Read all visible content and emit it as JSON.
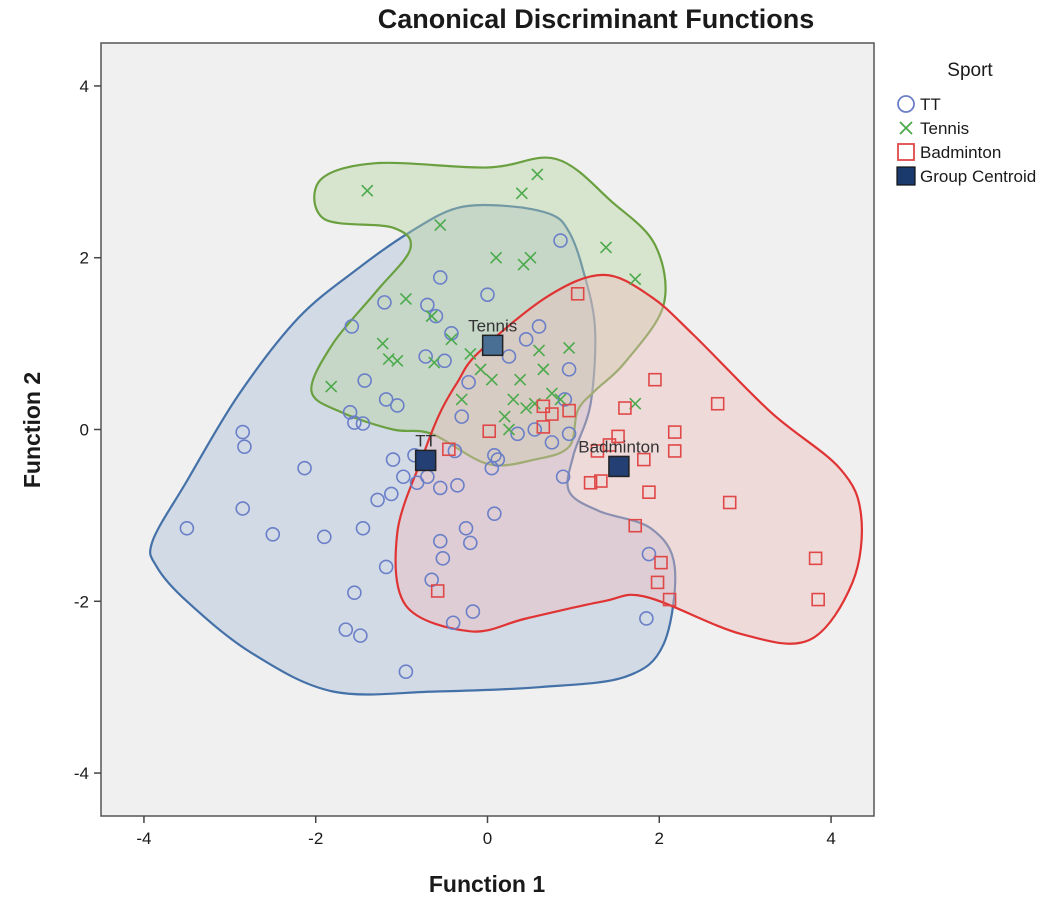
{
  "chart_data": {
    "type": "scatter",
    "title": "Canonical Discriminant Functions",
    "xlabel": "Function 1",
    "ylabel": "Function 2",
    "xlim": [
      -4.5,
      4.5
    ],
    "ylim": [
      -4.5,
      4.5
    ],
    "xticks": [
      "-4",
      "-2",
      "0",
      "2",
      "4"
    ],
    "yticks": [
      "-4",
      "-2",
      "0",
      "2",
      "4"
    ],
    "grid": false,
    "legend": {
      "title": "Sport",
      "placement": "right",
      "entries": [
        {
          "label": "TT",
          "marker": "circle",
          "color": "#6a7fc8"
        },
        {
          "label": "Tennis",
          "marker": "x",
          "color": "#4caa4c"
        },
        {
          "label": "Badminton",
          "marker": "square",
          "color": "#e04848"
        },
        {
          "label": "Group Centroid",
          "marker": "filled-square",
          "color": "#1a3a6e"
        }
      ]
    },
    "series": [
      {
        "name": "TT",
        "marker": "circle",
        "color": "#6a7fc8",
        "fill": "#a9bcd6",
        "outline": "#4471a8",
        "points": [
          [
            -3.5,
            -1.15
          ],
          [
            -2.85,
            -0.03
          ],
          [
            -2.83,
            -0.2
          ],
          [
            -2.85,
            -0.92
          ],
          [
            -2.5,
            -1.22
          ],
          [
            -2.13,
            -0.45
          ],
          [
            -1.9,
            -1.25
          ],
          [
            -1.65,
            -2.33
          ],
          [
            -1.58,
            1.2
          ],
          [
            -1.6,
            0.2
          ],
          [
            -1.55,
            0.08
          ],
          [
            -1.55,
            -1.9
          ],
          [
            -1.48,
            -2.4
          ],
          [
            -1.43,
            0.57
          ],
          [
            -1.45,
            0.07
          ],
          [
            -1.45,
            -1.15
          ],
          [
            -1.28,
            -0.82
          ],
          [
            -1.2,
            1.48
          ],
          [
            -1.18,
            0.35
          ],
          [
            -1.18,
            -1.6
          ],
          [
            -1.12,
            -0.75
          ],
          [
            -1.1,
            -0.35
          ],
          [
            -1.05,
            0.28
          ],
          [
            -0.98,
            -0.55
          ],
          [
            -0.95,
            -2.82
          ],
          [
            -0.85,
            -0.3
          ],
          [
            -0.82,
            -0.62
          ],
          [
            -0.7,
            1.45
          ],
          [
            -0.72,
            0.85
          ],
          [
            -0.7,
            -0.55
          ],
          [
            -0.65,
            -1.75
          ],
          [
            -0.6,
            1.32
          ],
          [
            -0.55,
            1.77
          ],
          [
            -0.55,
            -0.68
          ],
          [
            -0.55,
            -1.3
          ],
          [
            -0.52,
            -1.5
          ],
          [
            -0.5,
            0.8
          ],
          [
            -0.42,
            1.12
          ],
          [
            -0.4,
            -2.25
          ],
          [
            -0.38,
            -0.25
          ],
          [
            -0.35,
            -0.65
          ],
          [
            -0.3,
            0.15
          ],
          [
            -0.22,
            0.55
          ],
          [
            -0.25,
            -1.15
          ],
          [
            -0.2,
            -1.32
          ],
          [
            -0.17,
            -2.12
          ],
          [
            0.0,
            1.57
          ],
          [
            0.05,
            -0.45
          ],
          [
            0.08,
            -0.3
          ],
          [
            0.12,
            -0.35
          ],
          [
            0.08,
            -0.98
          ],
          [
            0.25,
            0.85
          ],
          [
            0.35,
            -0.05
          ],
          [
            0.45,
            1.05
          ],
          [
            0.55,
            0.0
          ],
          [
            0.6,
            1.2
          ],
          [
            0.75,
            -0.15
          ],
          [
            0.85,
            2.2
          ],
          [
            0.9,
            0.35
          ],
          [
            0.95,
            0.7
          ],
          [
            0.95,
            -0.05
          ],
          [
            0.88,
            -0.55
          ],
          [
            1.88,
            -1.45
          ],
          [
            1.85,
            -2.2
          ]
        ]
      },
      {
        "name": "Tennis",
        "marker": "x",
        "color": "#4caa4c",
        "fill": "#b6d3a0",
        "outline": "#6aa040",
        "points": [
          [
            -1.4,
            2.78
          ],
          [
            -1.82,
            0.5
          ],
          [
            -1.22,
            1.0
          ],
          [
            -1.15,
            0.82
          ],
          [
            -1.05,
            0.8
          ],
          [
            -0.95,
            1.52
          ],
          [
            -0.65,
            1.32
          ],
          [
            -0.62,
            0.78
          ],
          [
            -0.55,
            2.38
          ],
          [
            -0.42,
            1.05
          ],
          [
            -0.3,
            0.35
          ],
          [
            -0.2,
            0.88
          ],
          [
            -0.08,
            0.7
          ],
          [
            0.05,
            0.58
          ],
          [
            0.1,
            2.0
          ],
          [
            0.2,
            0.15
          ],
          [
            0.25,
            0.0
          ],
          [
            0.3,
            0.35
          ],
          [
            0.38,
            0.58
          ],
          [
            0.4,
            2.75
          ],
          [
            0.42,
            1.92
          ],
          [
            0.45,
            0.25
          ],
          [
            0.5,
            2.0
          ],
          [
            0.55,
            0.3
          ],
          [
            0.58,
            2.97
          ],
          [
            0.6,
            0.92
          ],
          [
            0.65,
            0.7
          ],
          [
            0.75,
            0.42
          ],
          [
            0.85,
            0.35
          ],
          [
            0.95,
            0.95
          ],
          [
            1.38,
            2.12
          ],
          [
            1.72,
            1.75
          ],
          [
            1.72,
            0.3
          ]
        ]
      },
      {
        "name": "Badminton",
        "marker": "square",
        "color": "#e04848",
        "fill": "#efbcbc",
        "outline": "#e03434",
        "points": [
          [
            -0.58,
            -1.88
          ],
          [
            -0.45,
            -0.23
          ],
          [
            0.02,
            -0.02
          ],
          [
            0.65,
            0.27
          ],
          [
            0.65,
            0.03
          ],
          [
            0.75,
            0.18
          ],
          [
            0.95,
            0.22
          ],
          [
            1.05,
            1.58
          ],
          [
            1.2,
            -0.62
          ],
          [
            1.28,
            -0.25
          ],
          [
            1.32,
            -0.6
          ],
          [
            1.42,
            -0.18
          ],
          [
            1.52,
            -0.08
          ],
          [
            1.6,
            0.25
          ],
          [
            1.72,
            -1.12
          ],
          [
            1.82,
            -0.35
          ],
          [
            1.88,
            -0.73
          ],
          [
            1.95,
            0.58
          ],
          [
            1.98,
            -1.78
          ],
          [
            2.02,
            -1.55
          ],
          [
            2.12,
            -1.98
          ],
          [
            2.18,
            -0.03
          ],
          [
            2.18,
            -0.25
          ],
          [
            2.68,
            0.3
          ],
          [
            2.82,
            -0.85
          ],
          [
            3.82,
            -1.5
          ],
          [
            3.85,
            -1.98
          ]
        ]
      }
    ],
    "centroids": [
      {
        "name": "TT",
        "label": "TT",
        "x": -0.72,
        "y": -0.36
      },
      {
        "name": "Tennis",
        "label": "Tennis",
        "x": 0.06,
        "y": 0.98
      },
      {
        "name": "Badminton",
        "label": "Badminton",
        "x": 1.53,
        "y": -0.43
      }
    ],
    "hulls": [
      {
        "name": "TT",
        "points": [
          [
            -3.9,
            -1.3
          ],
          [
            -3.5,
            -0.6
          ],
          [
            -2.9,
            0.4
          ],
          [
            -2.2,
            1.3
          ],
          [
            -1.5,
            1.88
          ],
          [
            -0.9,
            2.3
          ],
          [
            -0.35,
            2.58
          ],
          [
            0.25,
            2.6
          ],
          [
            0.75,
            2.5
          ],
          [
            0.95,
            2.3
          ],
          [
            1.1,
            1.9
          ],
          [
            1.25,
            1.2
          ],
          [
            1.2,
            0.3
          ],
          [
            1.0,
            -0.3
          ],
          [
            0.95,
            -0.72
          ],
          [
            1.3,
            -0.95
          ],
          [
            1.9,
            -1.15
          ],
          [
            2.18,
            -1.6
          ],
          [
            2.05,
            -2.5
          ],
          [
            1.6,
            -2.88
          ],
          [
            0.6,
            -3.0
          ],
          [
            -0.6,
            -3.05
          ],
          [
            -1.8,
            -3.05
          ],
          [
            -2.75,
            -2.6
          ],
          [
            -3.5,
            -2.0
          ],
          [
            -3.85,
            -1.6
          ]
        ]
      },
      {
        "name": "Tennis",
        "points": [
          [
            -2.05,
            0.45
          ],
          [
            -1.8,
            1.0
          ],
          [
            -1.3,
            1.6
          ],
          [
            -0.9,
            2.1
          ],
          [
            -1.1,
            2.35
          ],
          [
            -1.9,
            2.45
          ],
          [
            -1.95,
            2.9
          ],
          [
            -1.3,
            3.1
          ],
          [
            0.0,
            3.05
          ],
          [
            0.8,
            3.15
          ],
          [
            1.45,
            2.65
          ],
          [
            1.95,
            2.15
          ],
          [
            2.05,
            1.45
          ],
          [
            1.6,
            0.78
          ],
          [
            1.25,
            0.45
          ],
          [
            1.05,
            0.22
          ],
          [
            0.95,
            -0.2
          ],
          [
            0.55,
            -0.35
          ],
          [
            0.0,
            -0.4
          ],
          [
            -0.65,
            -0.05
          ],
          [
            -1.1,
            0.0
          ],
          [
            -1.7,
            0.2
          ]
        ]
      },
      {
        "name": "Badminton",
        "points": [
          [
            -0.1,
            0.9
          ],
          [
            0.7,
            1.55
          ],
          [
            1.35,
            1.8
          ],
          [
            1.9,
            1.55
          ],
          [
            2.4,
            1.1
          ],
          [
            3.3,
            0.2
          ],
          [
            4.1,
            -0.45
          ],
          [
            4.35,
            -1.0
          ],
          [
            4.25,
            -1.78
          ],
          [
            3.75,
            -2.45
          ],
          [
            2.95,
            -2.38
          ],
          [
            1.85,
            -1.95
          ],
          [
            1.35,
            -2.0
          ],
          [
            0.45,
            -2.2
          ],
          [
            -0.2,
            -2.35
          ],
          [
            -0.95,
            -2.05
          ],
          [
            -1.05,
            -1.2
          ],
          [
            -0.75,
            -0.3
          ],
          [
            -0.55,
            0.2
          ],
          [
            -0.35,
            0.55
          ]
        ]
      }
    ]
  }
}
